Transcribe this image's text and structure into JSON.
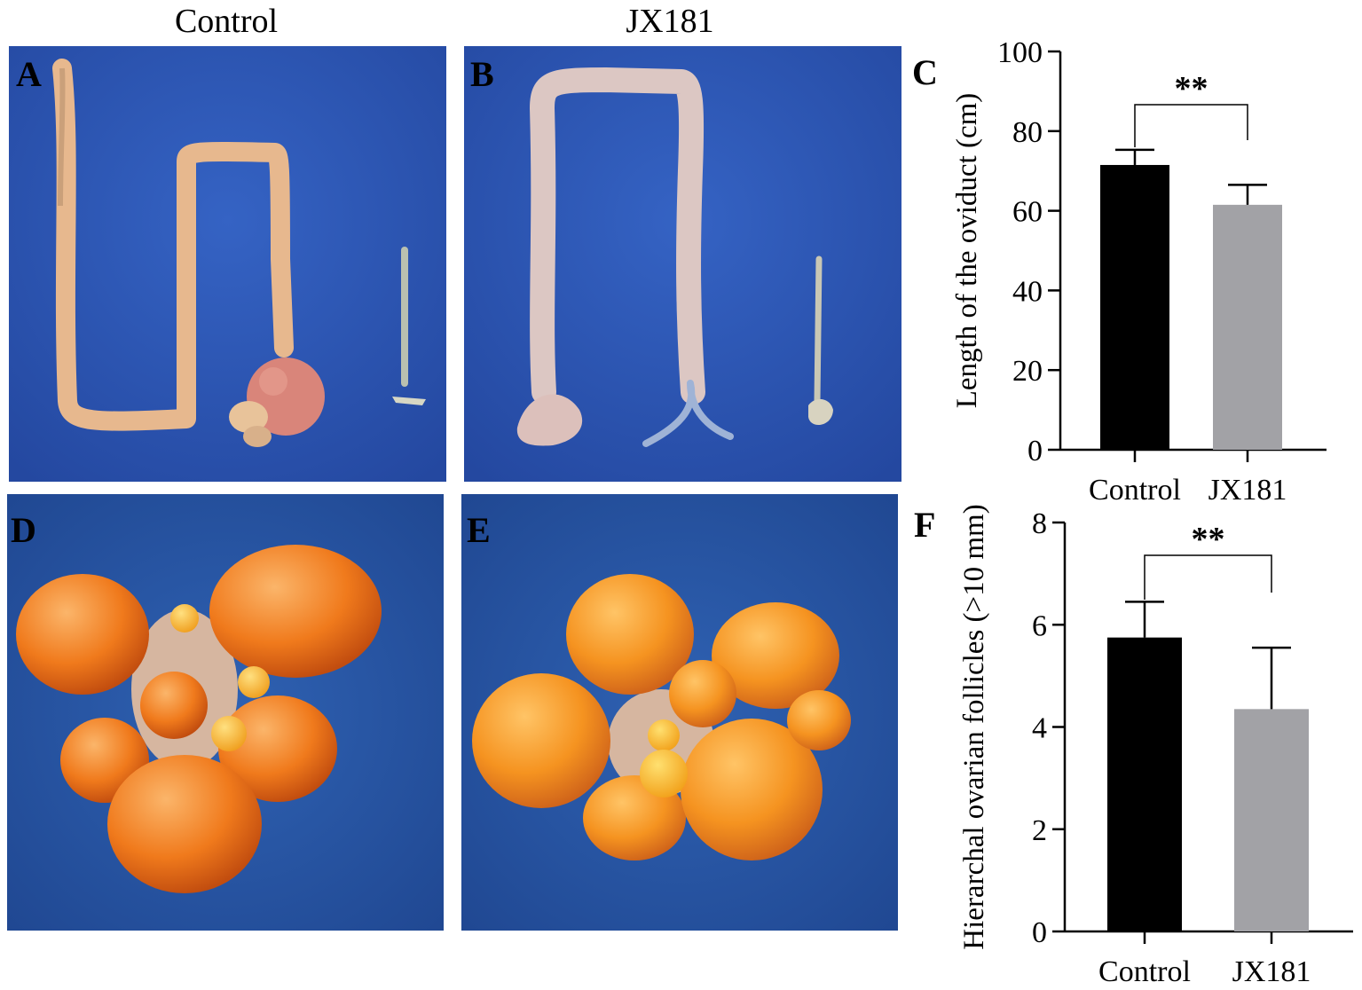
{
  "column_titles": [
    "Control",
    "JX181"
  ],
  "panel_letters": {
    "A": "A",
    "B": "B",
    "C": "C",
    "D": "D",
    "E": "E",
    "F": "F"
  },
  "colors": {
    "photo_background": "#2f59b8",
    "control_bar": "#000000",
    "jx181_bar": "#a2a2a6",
    "oviduct_control": "#e7b88e",
    "oviduct_jx181": "#dcc7c3",
    "follicle": "#f07a1c"
  },
  "chart_data": [
    {
      "panel": "C",
      "type": "bar",
      "categories": [
        "Control",
        "JX181"
      ],
      "values": [
        71.5,
        61.5
      ],
      "error": [
        3.8,
        5.0
      ],
      "ylabel": "Length of the oviduct (cm)",
      "ylim": [
        0,
        100
      ],
      "yticks": [
        "0",
        "20",
        "40",
        "60",
        "80",
        "100"
      ],
      "significance": "**",
      "colors": [
        "#000000",
        "#a2a2a6"
      ],
      "grid": false
    },
    {
      "panel": "F",
      "type": "bar",
      "categories": [
        "Control",
        "JX181"
      ],
      "values": [
        5.75,
        4.35
      ],
      "error": [
        0.7,
        1.2
      ],
      "ylabel": "Hierarchal ovarian follicles (>10 mm)",
      "ylim": [
        0,
        8
      ],
      "yticks": [
        "0",
        "2",
        "4",
        "6",
        "8"
      ],
      "significance": "**",
      "colors": [
        "#000000",
        "#a2a2a6"
      ],
      "grid": false
    }
  ]
}
